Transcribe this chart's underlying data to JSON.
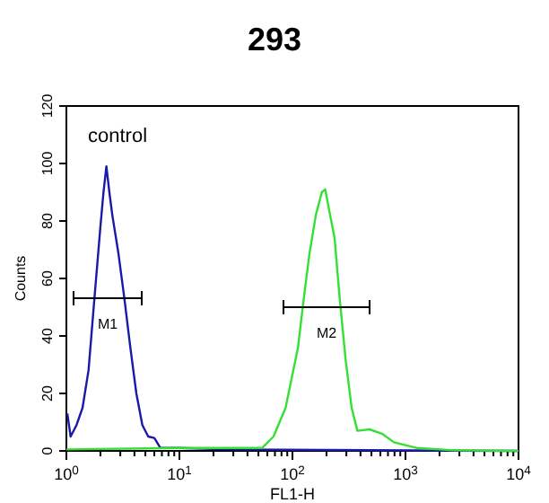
{
  "chart_data": {
    "type": "line",
    "title": "293",
    "xlabel": "FL1-H",
    "ylabel": "Counts",
    "log": "x",
    "grid": false,
    "line_style": "solid",
    "xlim": [
      1,
      10000
    ],
    "ylim": [
      0,
      120
    ],
    "xticks": [
      {
        "value": 1,
        "label": "10$^{0}$"
      },
      {
        "value": 2,
        "label": null
      },
      {
        "value": 3,
        "label": null
      },
      {
        "value": 4,
        "label": null
      },
      {
        "value": 5,
        "label": null
      },
      {
        "value": 6,
        "label": null
      },
      {
        "value": 7,
        "label": null
      },
      {
        "value": 8,
        "label": null
      },
      {
        "value": 9,
        "label": null
      },
      {
        "value": 10,
        "label": "10$^{1}$"
      },
      {
        "value": 20,
        "label": null
      },
      {
        "value": 30,
        "label": null
      },
      {
        "value": 40,
        "label": null
      },
      {
        "value": 50,
        "label": null
      },
      {
        "value": 60,
        "label": null
      },
      {
        "value": 70,
        "label": null
      },
      {
        "value": 80,
        "label": null
      },
      {
        "value": 90,
        "label": null
      },
      {
        "value": 100,
        "label": "10$^{2}$"
      },
      {
        "value": 200,
        "label": null
      },
      {
        "value": 300,
        "label": null
      },
      {
        "value": 400,
        "label": null
      },
      {
        "value": 500,
        "label": null
      },
      {
        "value": 600,
        "label": null
      },
      {
        "value": 700,
        "label": null
      },
      {
        "value": 800,
        "label": null
      },
      {
        "value": 900,
        "label": null
      },
      {
        "value": 1000,
        "label": "10$^{3}$"
      },
      {
        "value": 2000,
        "label": null
      },
      {
        "value": 3000,
        "label": null
      },
      {
        "value": 4000,
        "label": null
      },
      {
        "value": 5000,
        "label": null
      },
      {
        "value": 6000,
        "label": null
      },
      {
        "value": 7000,
        "label": null
      },
      {
        "value": 8000,
        "label": null
      },
      {
        "value": 9000,
        "label": null
      },
      {
        "value": 10000,
        "label": "10$^{4}$"
      }
    ],
    "yticks": [
      0,
      20,
      40,
      60,
      80,
      100,
      120
    ],
    "annotations": [
      "control",
      "M1",
      "M2"
    ],
    "series": [
      {
        "color": "#1a1aa8",
        "x": [
          1.02,
          1.09,
          1.23,
          1.39,
          1.57,
          1.77,
          2.0,
          2.13,
          2.26,
          2.4,
          2.55,
          2.88,
          3.26,
          3.68,
          4.16,
          4.7,
          5.3,
          6.0,
          6.8,
          9.8,
          33,
          205,
          10000
        ],
        "values": [
          13,
          5,
          9,
          15,
          28,
          53,
          78,
          90,
          99,
          90,
          82,
          69,
          53,
          36,
          20,
          9,
          5,
          4.5,
          1,
          1,
          0.5,
          0.3,
          0
        ]
      },
      {
        "color": "#33e033",
        "x": [
          1,
          9.8,
          53.7,
          68,
          87,
          112,
          126,
          142,
          161,
          182,
          195,
          206,
          236,
          262,
          295,
          334,
          376,
          480,
          620,
          790,
          1270,
          2700,
          10000
        ],
        "values": [
          0.5,
          1,
          1,
          5,
          15,
          36,
          53,
          69,
          82,
          90,
          91,
          86,
          74,
          53,
          32,
          15,
          7,
          7.5,
          6,
          3,
          1,
          0.2,
          0
        ]
      }
    ]
  }
}
